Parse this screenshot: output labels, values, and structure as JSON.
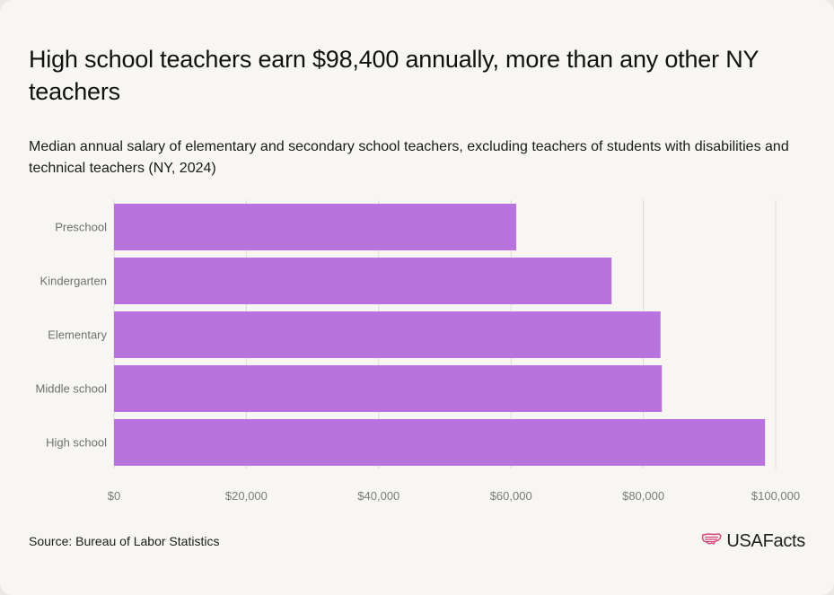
{
  "header": {
    "title": "High school teachers earn $98,400 annually, more than any other NY teachers",
    "subtitle": "Median annual salary of elementary and secondary school teachers, excluding teachers of students with disabilities and technical teachers (NY, 2024)"
  },
  "footer": {
    "source": "Source: Bureau of Labor Statistics",
    "brand": "USAFacts",
    "brand_icon": "usa-flag-map-icon"
  },
  "colors": {
    "bar": "#b873df",
    "grid": "#dcdad4",
    "background": "#f7f6f2"
  },
  "chart_data": {
    "type": "bar",
    "orientation": "horizontal",
    "title": "High school teachers earn $98,400 annually, more than any other NY teachers",
    "subtitle": "Median annual salary of elementary and secondary school teachers, excluding teachers of students with disabilities and technical teachers (NY, 2024)",
    "categories": [
      "Preschool",
      "Kindergarten",
      "Elementary",
      "Middle school",
      "High school"
    ],
    "values": [
      60800,
      75200,
      82600,
      82800,
      98400
    ],
    "xlim": [
      0,
      100000
    ],
    "xticks": [
      0,
      20000,
      40000,
      60000,
      80000,
      100000
    ],
    "xtick_labels": [
      "$0",
      "$20,000",
      "$40,000",
      "$60,000",
      "$80,000",
      "$100,000"
    ],
    "xlabel": "",
    "ylabel": "",
    "grid": true
  }
}
